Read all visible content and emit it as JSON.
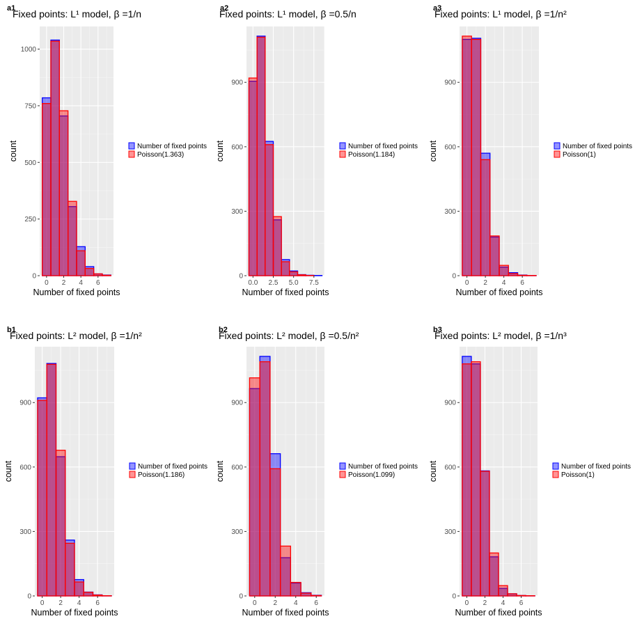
{
  "legend_entries": [
    "Number of fixed points",
    "Poisson"
  ],
  "colors": {
    "fixed": "#0000ff",
    "poisson": "#ff0000",
    "panel_bg": "#ebebeb",
    "grid": "#ffffff"
  },
  "chart_data": [
    {
      "type": "bar",
      "tag": "a1",
      "title": "Fixed points: L¹ model, β =1/n",
      "xlabel": "Number of fixed points",
      "ylabel": "count",
      "x_ticks": [
        "0",
        "2",
        "4",
        "6"
      ],
      "y_ticks": [
        "0",
        "250",
        "500",
        "750",
        "1000"
      ],
      "ylim": [
        0,
        1100
      ],
      "categories": [
        0,
        1,
        2,
        3,
        4,
        5,
        6,
        7
      ],
      "series": [
        {
          "name": "Number of fixed points",
          "values": [
            785,
            1040,
            705,
            305,
            128,
            40,
            8,
            3
          ]
        },
        {
          "name": "Poisson(1.363)",
          "values": [
            760,
            1035,
            728,
            328,
            110,
            32,
            8,
            2
          ]
        }
      ]
    },
    {
      "type": "bar",
      "tag": "a2",
      "title": "Fixed points: L¹ model, β =0.5/n",
      "xlabel": "Number of fixed points",
      "ylabel": "count",
      "x_ticks": [
        "0.0",
        "2.5",
        "5.0",
        "7.5"
      ],
      "y_ticks": [
        "0",
        "300",
        "600",
        "900"
      ],
      "ylim": [
        0,
        1160
      ],
      "categories": [
        0,
        1,
        2,
        3,
        4,
        5,
        6,
        7,
        8
      ],
      "series": [
        {
          "name": "Number of fixed points",
          "values": [
            905,
            1115,
            625,
            260,
            75,
            22,
            5,
            2,
            1
          ]
        },
        {
          "name": "Poisson(1.184)",
          "values": [
            920,
            1110,
            610,
            275,
            65,
            18,
            4,
            1,
            0
          ]
        }
      ]
    },
    {
      "type": "bar",
      "tag": "a3",
      "title": "Fixed points: L¹ model, β =1/n²",
      "xlabel": "Number of fixed points",
      "ylabel": "count",
      "x_ticks": [
        "0",
        "2",
        "4",
        "6"
      ],
      "y_ticks": [
        "0",
        "300",
        "600",
        "900"
      ],
      "ylim": [
        0,
        1160
      ],
      "categories": [
        0,
        1,
        2,
        3,
        4,
        5,
        6,
        7
      ],
      "series": [
        {
          "name": "Number of fixed points",
          "values": [
            1100,
            1105,
            570,
            180,
            40,
            14,
            3,
            1
          ]
        },
        {
          "name": "Poisson(1)",
          "values": [
            1115,
            1100,
            540,
            185,
            48,
            10,
            2,
            1
          ]
        }
      ]
    },
    {
      "type": "bar",
      "tag": "b1",
      "title": "Fixed points: L² model, β =1/n²",
      "xlabel": "Number of fixed points",
      "ylabel": "count",
      "x_ticks": [
        "0",
        "2",
        "4",
        "6"
      ],
      "y_ticks": [
        "0",
        "300",
        "600",
        "900"
      ],
      "ylim": [
        0,
        1160
      ],
      "categories": [
        0,
        1,
        2,
        3,
        4,
        5,
        6,
        7
      ],
      "series": [
        {
          "name": "Number of fixed points",
          "values": [
            922,
            1082,
            648,
            260,
            76,
            18,
            5,
            1
          ]
        },
        {
          "name": "Poisson(1.186)",
          "values": [
            910,
            1078,
            678,
            245,
            65,
            17,
            4,
            1
          ]
        }
      ]
    },
    {
      "type": "bar",
      "tag": "b2",
      "title": "Fixed points: L² model, β =0.5/n²",
      "xlabel": "Number of fixed points",
      "ylabel": "count",
      "x_ticks": [
        "0",
        "2",
        "4",
        "6"
      ],
      "y_ticks": [
        "0",
        "300",
        "600",
        "900"
      ],
      "ylim": [
        0,
        1160
      ],
      "categories": [
        0,
        1,
        2,
        3,
        4,
        5,
        6
      ],
      "series": [
        {
          "name": "Number of fixed points",
          "values": [
            965,
            1115,
            662,
            178,
            60,
            15,
            3
          ]
        },
        {
          "name": "Poisson(1.099)",
          "values": [
            1015,
            1090,
            592,
            232,
            63,
            13,
            2
          ]
        }
      ]
    },
    {
      "type": "bar",
      "tag": "b3",
      "title": "Fixed points: L² model, β =1/n³",
      "xlabel": "Number of fixed points",
      "ylabel": "count",
      "x_ticks": [
        "0",
        "2",
        "4",
        "6"
      ],
      "y_ticks": [
        "0",
        "300",
        "600",
        "900"
      ],
      "ylim": [
        0,
        1160
      ],
      "categories": [
        0,
        1,
        2,
        3,
        4,
        5,
        6,
        7
      ],
      "series": [
        {
          "name": "Number of fixed points",
          "values": [
            1115,
            1080,
            582,
            182,
            35,
            10,
            2,
            1
          ]
        },
        {
          "name": "Poisson(1)",
          "values": [
            1080,
            1090,
            580,
            200,
            48,
            10,
            2,
            1
          ]
        }
      ]
    }
  ]
}
